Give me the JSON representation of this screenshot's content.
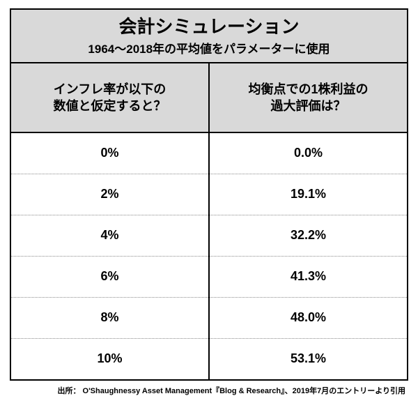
{
  "title": {
    "main": "会計シミュレーション",
    "sub": "1964～2018年の平均値をパラメーターに使用"
  },
  "columns": {
    "left": "インフレ率が以下の\n数値と仮定すると？",
    "right": "均衡点での1株利益の\n過大評価は？"
  },
  "rows": [
    {
      "rate": "0%",
      "over": "0.0%"
    },
    {
      "rate": "2%",
      "over": "19.1%"
    },
    {
      "rate": "4%",
      "over": "32.2%"
    },
    {
      "rate": "6%",
      "over": "41.3%"
    },
    {
      "rate": "8%",
      "over": "48.0%"
    },
    {
      "rate": "10%",
      "over": "53.1%"
    }
  ],
  "source": "出所： O'Shaughnessy Asset Management『Blog & Research』、2019年7月のエントリーより引用",
  "style": {
    "header_bg": "#d9d9d9",
    "border_color": "#000000",
    "dotted_color": "#8a8a8a",
    "font_main_pt": 26,
    "font_sub_pt": 17,
    "font_head_pt": 18,
    "font_cell_pt": 18,
    "font_source_pt": 11
  }
}
